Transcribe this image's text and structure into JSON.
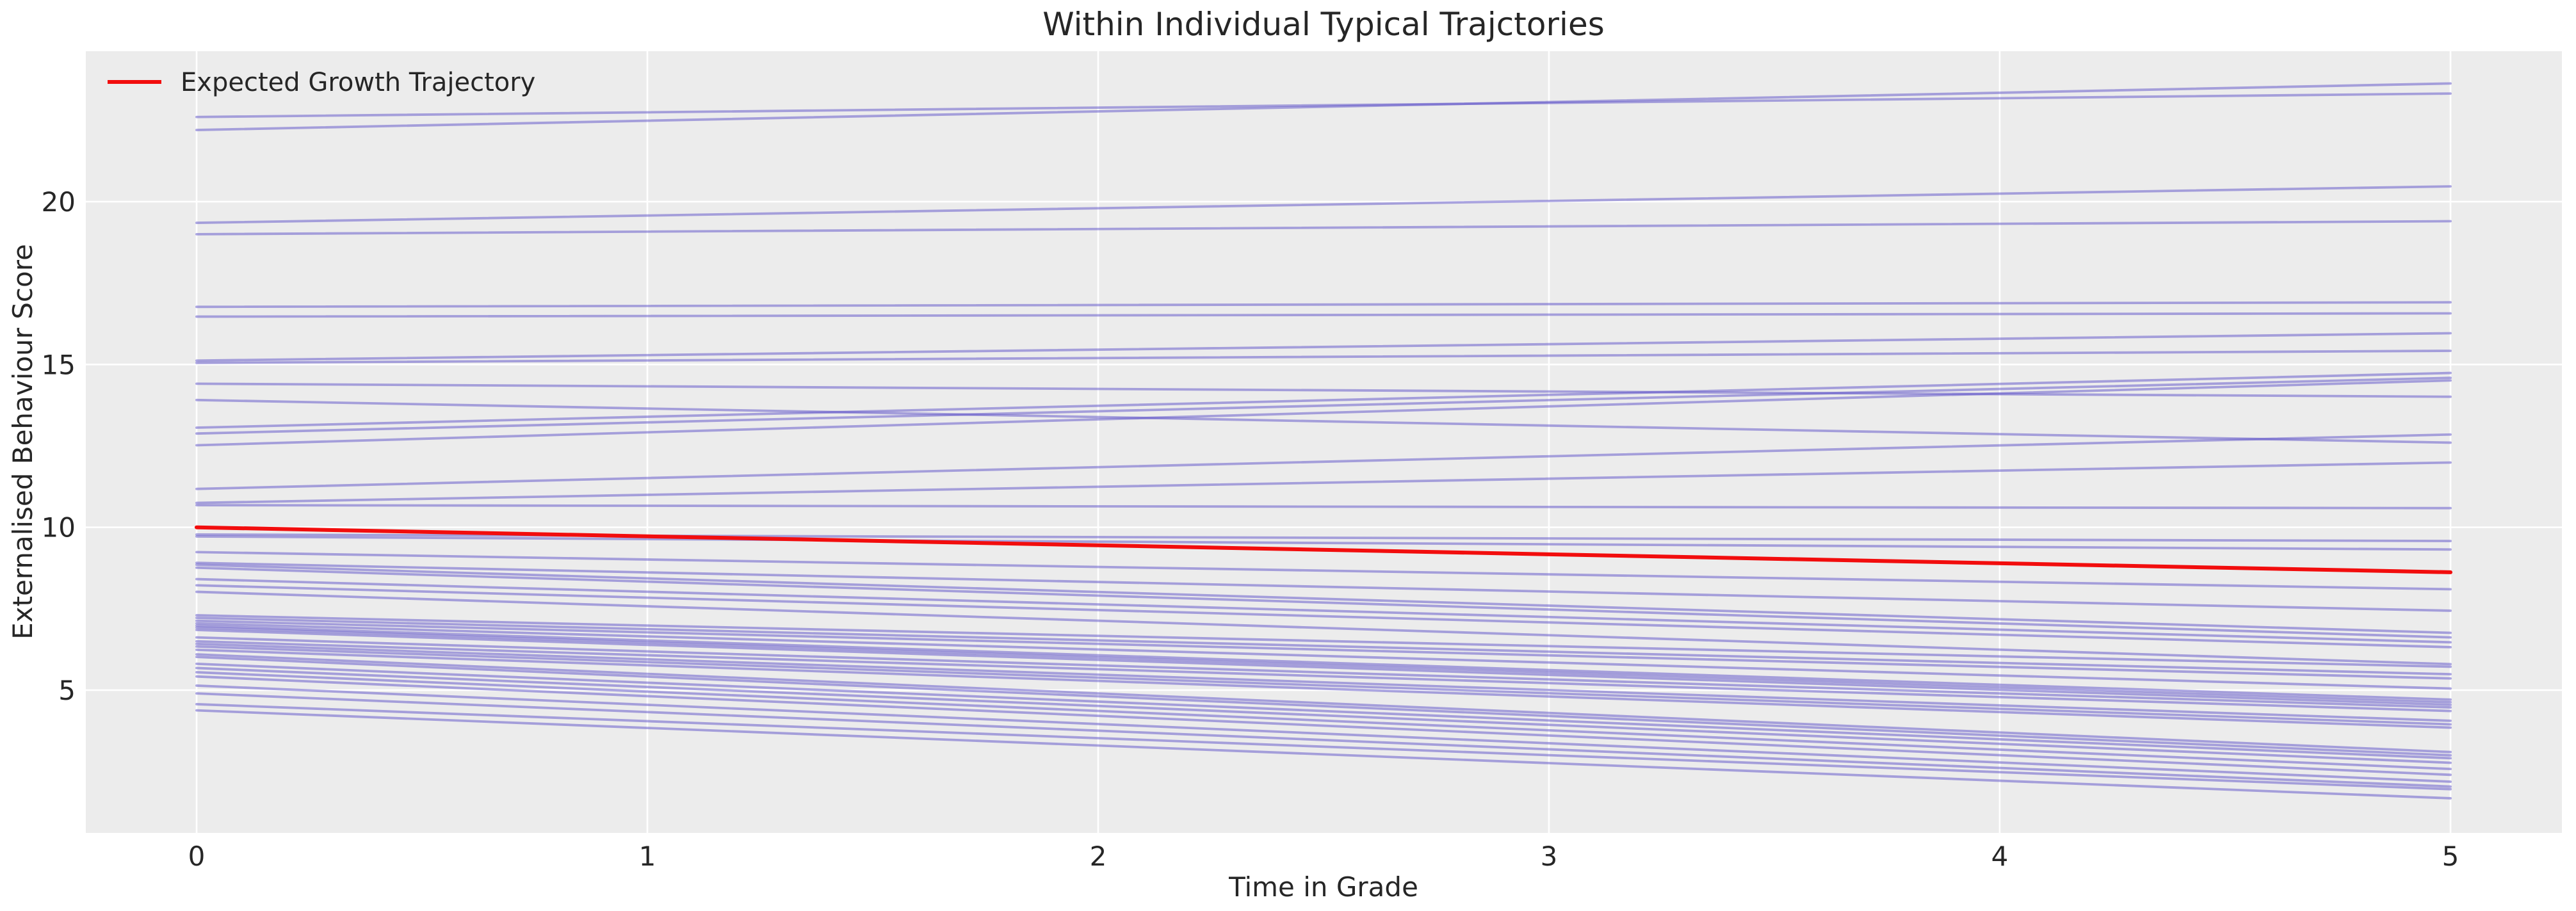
{
  "figure": {
    "title": "Within Individual Typical Trajctories",
    "x_axis": {
      "label": "Time in Grade",
      "ticks": [
        "0",
        "1",
        "2",
        "3",
        "4",
        "5"
      ]
    },
    "y_axis": {
      "label": "Externalised Behaviour Score",
      "ticks": [
        "5",
        "10",
        "15",
        "20"
      ]
    },
    "legend": {
      "entries": [
        {
          "label": "Expected Growth Trajectory",
          "color": "#f20d0d"
        }
      ]
    },
    "colors": {
      "figure_bg": "#ffffff",
      "plot_bg": "#ececec",
      "grid": "#ffffff",
      "trajectory": "#5b4fc8",
      "expected_growth": "#f20d0d",
      "text": "#262626"
    }
  },
  "chart_data": {
    "type": "line",
    "title": "Within Individual Typical Trajctories",
    "xlabel": "Time in Grade",
    "ylabel": "Externalised Behaviour Score",
    "x_ticks": [
      0,
      1,
      2,
      3,
      4,
      5
    ],
    "y_ticks": [
      5,
      10,
      15,
      20
    ],
    "xlim": [
      -0.25,
      5.25
    ],
    "ylim": [
      0.6,
      24.6
    ],
    "grid": true,
    "legend_position": "upper-left",
    "expected_growth": {
      "name": "Expected Growth Trajectory",
      "x": [
        0,
        5
      ],
      "y": [
        10.0,
        8.62
      ],
      "color": "red"
    },
    "individual_trajectories": {
      "x": [
        0,
        5
      ],
      "color": "mediumpurple-translucent",
      "y_pairs": [
        [
          22.2,
          23.63
        ],
        [
          22.6,
          23.32
        ],
        [
          19.35,
          20.47
        ],
        [
          19.0,
          19.4
        ],
        [
          16.77,
          16.91
        ],
        [
          16.47,
          16.57
        ],
        [
          15.12,
          15.96
        ],
        [
          15.05,
          15.42
        ],
        [
          14.41,
          14.01
        ],
        [
          13.91,
          12.6
        ],
        [
          13.06,
          14.74
        ],
        [
          12.88,
          14.59
        ],
        [
          12.52,
          14.51
        ],
        [
          11.18,
          12.85
        ],
        [
          10.75,
          11.99
        ],
        [
          10.68,
          10.59
        ],
        [
          9.78,
          9.58
        ],
        [
          9.72,
          9.32
        ],
        [
          9.24,
          8.1
        ],
        [
          8.91,
          7.44
        ],
        [
          8.85,
          6.76
        ],
        [
          8.76,
          6.62
        ],
        [
          8.41,
          6.47
        ],
        [
          8.22,
          6.32
        ],
        [
          8.02,
          5.8
        ],
        [
          7.3,
          5.72
        ],
        [
          7.22,
          5.49
        ],
        [
          7.13,
          5.36
        ],
        [
          7.05,
          5.05
        ],
        [
          6.98,
          4.71
        ],
        [
          6.92,
          4.63
        ],
        [
          6.85,
          4.55
        ],
        [
          6.62,
          4.47
        ],
        [
          6.5,
          4.36
        ],
        [
          6.42,
          4.06
        ],
        [
          6.34,
          3.95
        ],
        [
          6.24,
          3.85
        ],
        [
          6.1,
          3.1
        ],
        [
          6.02,
          3.0
        ],
        [
          5.81,
          2.91
        ],
        [
          5.68,
          2.77
        ],
        [
          5.55,
          2.58
        ],
        [
          5.42,
          2.4
        ],
        [
          5.14,
          2.19
        ],
        [
          4.9,
          2.04
        ],
        [
          4.57,
          1.96
        ],
        [
          4.38,
          1.68
        ]
      ]
    }
  }
}
